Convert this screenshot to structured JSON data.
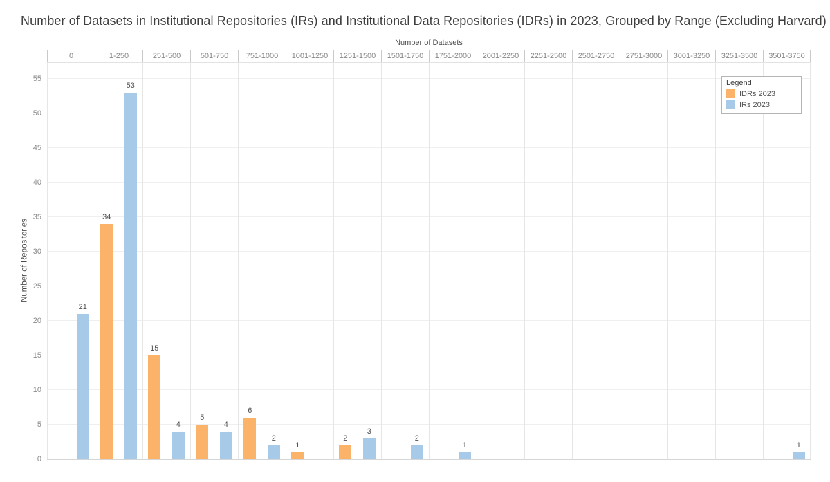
{
  "chart_data": {
    "type": "bar",
    "title": "Number of Datasets in Institutional Repositories (IRs) and Institutional Data Repositories (IDRs) in 2023, Grouped by Range (Excluding Harvard)",
    "xlabel": "Number of Datasets",
    "ylabel": "Number of Repositories",
    "categories": [
      "0",
      "1-250",
      "251-500",
      "501-750",
      "751-1000",
      "1001-1250",
      "1251-1500",
      "1501-1750",
      "1751-2000",
      "2001-2250",
      "2251-2500",
      "2501-2750",
      "2751-3000",
      "3001-3250",
      "3251-3500",
      "3501-3750"
    ],
    "series": [
      {
        "name": "IDRs 2023",
        "color": "#FBB269",
        "values": [
          0,
          34,
          15,
          5,
          6,
          1,
          2,
          0,
          0,
          0,
          0,
          0,
          0,
          0,
          0,
          0
        ]
      },
      {
        "name": "IRs 2023",
        "color": "#A7CAE8",
        "values": [
          21,
          53,
          4,
          4,
          2,
          0,
          3,
          2,
          1,
          0,
          0,
          0,
          0,
          0,
          0,
          1
        ]
      }
    ],
    "y_ticks": [
      0,
      5,
      10,
      15,
      20,
      25,
      30,
      35,
      40,
      45,
      50,
      55
    ],
    "ylim": [
      0,
      57.4
    ],
    "grid": true,
    "bar_labels_shown": true,
    "legend": {
      "title": "Legend",
      "position": "top-right"
    },
    "colors": {
      "idrs": "#FBB269",
      "irs": "#A7CAE8"
    }
  }
}
